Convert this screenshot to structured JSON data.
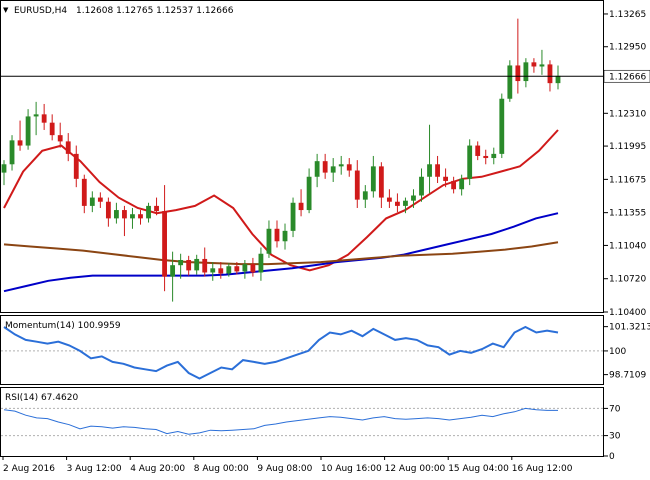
{
  "window": {
    "title": "EURUSD,H4",
    "ohlc": "1.12608 1.12765 1.12537 1.12666",
    "arrow_glyph": "▼"
  },
  "chart_data": [
    {
      "type": "candlestick",
      "title": "EURUSD,H4  1.12608 1.12765 1.12537 1.12666",
      "ylim": [
        1.104,
        1.1338
      ],
      "y_ticks": [
        1.13265,
        1.1295,
        1.12666,
        1.1231,
        1.11995,
        1.11675,
        1.11355,
        1.1104,
        1.1072,
        1.104
      ],
      "y_tick_labels": [
        "1.13265",
        "1.12950",
        "1.12666",
        "1.12310",
        "1.11995",
        "1.11675",
        "1.11355",
        "1.11040",
        "1.10720",
        "1.10400"
      ],
      "current_price": 1.12666,
      "current_price_label": "1.12666",
      "candles": [
        {
          "o": 1.1174,
          "h": 1.1186,
          "l": 1.1162,
          "c": 1.1182
        },
        {
          "o": 1.1182,
          "h": 1.121,
          "l": 1.1176,
          "c": 1.1205
        },
        {
          "o": 1.1205,
          "h": 1.1224,
          "l": 1.1195,
          "c": 1.12
        },
        {
          "o": 1.12,
          "h": 1.1235,
          "l": 1.1196,
          "c": 1.1228
        },
        {
          "o": 1.1228,
          "h": 1.1242,
          "l": 1.121,
          "c": 1.123
        },
        {
          "o": 1.123,
          "h": 1.124,
          "l": 1.1215,
          "c": 1.1222
        },
        {
          "o": 1.1222,
          "h": 1.123,
          "l": 1.1205,
          "c": 1.121
        },
        {
          "o": 1.121,
          "h": 1.1222,
          "l": 1.1198,
          "c": 1.1204
        },
        {
          "o": 1.1204,
          "h": 1.1212,
          "l": 1.1185,
          "c": 1.1192
        },
        {
          "o": 1.1192,
          "h": 1.12,
          "l": 1.116,
          "c": 1.1168
        },
        {
          "o": 1.1168,
          "h": 1.1172,
          "l": 1.1135,
          "c": 1.1142
        },
        {
          "o": 1.1142,
          "h": 1.1156,
          "l": 1.1136,
          "c": 1.115
        },
        {
          "o": 1.115,
          "h": 1.1155,
          "l": 1.114,
          "c": 1.1146
        },
        {
          "o": 1.1146,
          "h": 1.115,
          "l": 1.1122,
          "c": 1.113
        },
        {
          "o": 1.113,
          "h": 1.1145,
          "l": 1.1125,
          "c": 1.1138
        },
        {
          "o": 1.1138,
          "h": 1.1142,
          "l": 1.1113,
          "c": 1.113
        },
        {
          "o": 1.113,
          "h": 1.114,
          "l": 1.112,
          "c": 1.1134
        },
        {
          "o": 1.1134,
          "h": 1.1138,
          "l": 1.1124,
          "c": 1.113
        },
        {
          "o": 1.113,
          "h": 1.1145,
          "l": 1.1126,
          "c": 1.1142
        },
        {
          "o": 1.1142,
          "h": 1.115,
          "l": 1.1133,
          "c": 1.1137
        },
        {
          "o": 1.1137,
          "h": 1.1162,
          "l": 1.106,
          "c": 1.1074
        },
        {
          "o": 1.1074,
          "h": 1.1098,
          "l": 1.105,
          "c": 1.1085
        },
        {
          "o": 1.1085,
          "h": 1.1096,
          "l": 1.1072,
          "c": 1.109
        },
        {
          "o": 1.109,
          "h": 1.1094,
          "l": 1.1075,
          "c": 1.108
        },
        {
          "o": 1.108,
          "h": 1.1095,
          "l": 1.1076,
          "c": 1.1091
        },
        {
          "o": 1.1091,
          "h": 1.1102,
          "l": 1.1074,
          "c": 1.1078
        },
        {
          "o": 1.1078,
          "h": 1.1088,
          "l": 1.107,
          "c": 1.1082
        },
        {
          "o": 1.1082,
          "h": 1.1088,
          "l": 1.1072,
          "c": 1.1077
        },
        {
          "o": 1.1077,
          "h": 1.1087,
          "l": 1.1074,
          "c": 1.1084
        },
        {
          "o": 1.1084,
          "h": 1.1088,
          "l": 1.1076,
          "c": 1.1079
        },
        {
          "o": 1.1079,
          "h": 1.109,
          "l": 1.1072,
          "c": 1.1086
        },
        {
          "o": 1.1086,
          "h": 1.1092,
          "l": 1.1074,
          "c": 1.1078
        },
        {
          "o": 1.1078,
          "h": 1.1102,
          "l": 1.107,
          "c": 1.1096
        },
        {
          "o": 1.1096,
          "h": 1.1128,
          "l": 1.1092,
          "c": 1.112
        },
        {
          "o": 1.112,
          "h": 1.1128,
          "l": 1.1102,
          "c": 1.1108
        },
        {
          "o": 1.1108,
          "h": 1.1125,
          "l": 1.11,
          "c": 1.1118
        },
        {
          "o": 1.1118,
          "h": 1.115,
          "l": 1.1112,
          "c": 1.1145
        },
        {
          "o": 1.1145,
          "h": 1.1158,
          "l": 1.1132,
          "c": 1.1138
        },
        {
          "o": 1.1138,
          "h": 1.1178,
          "l": 1.1135,
          "c": 1.117
        },
        {
          "o": 1.117,
          "h": 1.1192,
          "l": 1.116,
          "c": 1.1185
        },
        {
          "o": 1.1185,
          "h": 1.1192,
          "l": 1.1168,
          "c": 1.1174
        },
        {
          "o": 1.1174,
          "h": 1.1188,
          "l": 1.1165,
          "c": 1.118
        },
        {
          "o": 1.118,
          "h": 1.119,
          "l": 1.1172,
          "c": 1.1182
        },
        {
          "o": 1.1182,
          "h": 1.1188,
          "l": 1.117,
          "c": 1.1176
        },
        {
          "o": 1.1176,
          "h": 1.1186,
          "l": 1.114,
          "c": 1.1148
        },
        {
          "o": 1.1148,
          "h": 1.1162,
          "l": 1.114,
          "c": 1.1156
        },
        {
          "o": 1.1156,
          "h": 1.119,
          "l": 1.115,
          "c": 1.118
        },
        {
          "o": 1.118,
          "h": 1.1184,
          "l": 1.114,
          "c": 1.115
        },
        {
          "o": 1.115,
          "h": 1.1158,
          "l": 1.114,
          "c": 1.1146
        },
        {
          "o": 1.1146,
          "h": 1.1154,
          "l": 1.1136,
          "c": 1.1142
        },
        {
          "o": 1.1142,
          "h": 1.115,
          "l": 1.1135,
          "c": 1.1147
        },
        {
          "o": 1.1147,
          "h": 1.1158,
          "l": 1.114,
          "c": 1.1152
        },
        {
          "o": 1.1152,
          "h": 1.1178,
          "l": 1.1146,
          "c": 1.117
        },
        {
          "o": 1.117,
          "h": 1.122,
          "l": 1.1154,
          "c": 1.1182
        },
        {
          "o": 1.1182,
          "h": 1.119,
          "l": 1.1164,
          "c": 1.117
        },
        {
          "o": 1.117,
          "h": 1.1178,
          "l": 1.116,
          "c": 1.1166
        },
        {
          "o": 1.1166,
          "h": 1.117,
          "l": 1.1154,
          "c": 1.1158
        },
        {
          "o": 1.1158,
          "h": 1.1172,
          "l": 1.1152,
          "c": 1.1168
        },
        {
          "o": 1.1168,
          "h": 1.1206,
          "l": 1.1162,
          "c": 1.12
        },
        {
          "o": 1.12,
          "h": 1.1204,
          "l": 1.1186,
          "c": 1.119
        },
        {
          "o": 1.119,
          "h": 1.1196,
          "l": 1.1182,
          "c": 1.1188
        },
        {
          "o": 1.1188,
          "h": 1.1198,
          "l": 1.1182,
          "c": 1.1192
        },
        {
          "o": 1.1192,
          "h": 1.125,
          "l": 1.1188,
          "c": 1.1245
        },
        {
          "o": 1.1245,
          "h": 1.1282,
          "l": 1.1242,
          "c": 1.1277
        },
        {
          "o": 1.1277,
          "h": 1.1322,
          "l": 1.125,
          "c": 1.1262
        },
        {
          "o": 1.1262,
          "h": 1.1284,
          "l": 1.1256,
          "c": 1.128
        },
        {
          "o": 1.128,
          "h": 1.1284,
          "l": 1.127,
          "c": 1.1276
        },
        {
          "o": 1.1276,
          "h": 1.1292,
          "l": 1.1268,
          "c": 1.1278
        },
        {
          "o": 1.1278,
          "h": 1.1282,
          "l": 1.1252,
          "c": 1.126
        },
        {
          "o": 1.126,
          "h": 1.1277,
          "l": 1.1254,
          "c": 1.1267
        }
      ],
      "moving_averages": [
        {
          "color": "#d01a1a",
          "values": [
            1.114,
            1.1175,
            1.1195,
            1.12,
            1.1185,
            1.1165,
            1.115,
            1.114,
            1.1135,
            1.1138,
            1.1142,
            1.1152,
            1.114,
            1.1115,
            1.1095,
            1.1085,
            1.108,
            1.1085,
            1.1095,
            1.1112,
            1.113,
            1.1138,
            1.115,
            1.1162,
            1.1168,
            1.117,
            1.1175,
            1.118,
            1.1195,
            1.1215
          ]
        },
        {
          "color": "#0000c8",
          "values": [
            1.106,
            1.1065,
            1.107,
            1.1073,
            1.1075,
            1.1075,
            1.1075,
            1.1075,
            1.1075,
            1.1075,
            1.1076,
            1.1078,
            1.108,
            1.1082,
            1.1085,
            1.1088,
            1.109,
            1.1092,
            1.1095,
            1.11,
            1.1105,
            1.111,
            1.1115,
            1.1122,
            1.113,
            1.1135
          ]
        },
        {
          "color": "#8b4513",
          "values": [
            1.1105,
            1.1103,
            1.1101,
            1.1099,
            1.1096,
            1.1093,
            1.109,
            1.1088,
            1.1087,
            1.1086,
            1.1086,
            1.1087,
            1.1088,
            1.109,
            1.1092,
            1.1094,
            1.1095,
            1.1096,
            1.1098,
            1.11,
            1.1103,
            1.1107
          ]
        }
      ]
    },
    {
      "type": "line",
      "title": "Momentum(14) 100.9959",
      "ylim": [
        98.2,
        101.9
      ],
      "y_ticks": [
        101.3213,
        100,
        98.7109
      ],
      "y_tick_labels": [
        "101.3213",
        "100",
        "98.7109"
      ],
      "color": "#2b6fd8",
      "values": [
        101.3,
        100.9,
        100.6,
        100.5,
        100.4,
        100.5,
        100.3,
        100.0,
        99.6,
        99.7,
        99.4,
        99.3,
        99.1,
        99.0,
        98.9,
        99.2,
        99.4,
        98.8,
        98.5,
        98.8,
        99.1,
        99.0,
        99.5,
        99.4,
        99.3,
        99.4,
        99.6,
        99.8,
        100.0,
        100.6,
        101.0,
        100.9,
        101.1,
        100.8,
        101.2,
        100.9,
        100.6,
        100.7,
        100.6,
        100.3,
        100.2,
        99.8,
        100.0,
        99.9,
        100.1,
        100.4,
        100.2,
        101.0,
        101.3,
        101.0,
        101.1,
        101.0
      ]
    },
    {
      "type": "line",
      "title": "RSI(14) 67.4620",
      "ylim": [
        0,
        100
      ],
      "y_ticks": [
        70,
        30,
        0
      ],
      "y_tick_labels": [
        "70",
        "30",
        "0"
      ],
      "color": "#2b6fd8",
      "values": [
        68,
        66,
        60,
        56,
        55,
        50,
        46,
        40,
        44,
        43,
        41,
        43,
        42,
        40,
        39,
        33,
        36,
        32,
        34,
        38,
        37,
        38,
        39,
        40,
        45,
        47,
        50,
        52,
        54,
        56,
        58,
        57,
        55,
        53,
        56,
        58,
        55,
        54,
        55,
        56,
        55,
        53,
        55,
        57,
        60,
        58,
        62,
        65,
        70,
        68,
        67,
        67
      ]
    }
  ],
  "x_axis": {
    "labels": [
      "2 Aug 2016",
      "3 Aug 12:00",
      "4 Aug 20:00",
      "8 Aug 00:00",
      "9 Aug 08:00",
      "10 Aug 16:00",
      "12 Aug 00:00",
      "15 Aug 04:00",
      "16 Aug 12:00"
    ]
  },
  "colors": {
    "bull": "#2a8a2a",
    "bear": "#d01a1a",
    "axis": "#000000",
    "level": "#b0b0b0"
  }
}
